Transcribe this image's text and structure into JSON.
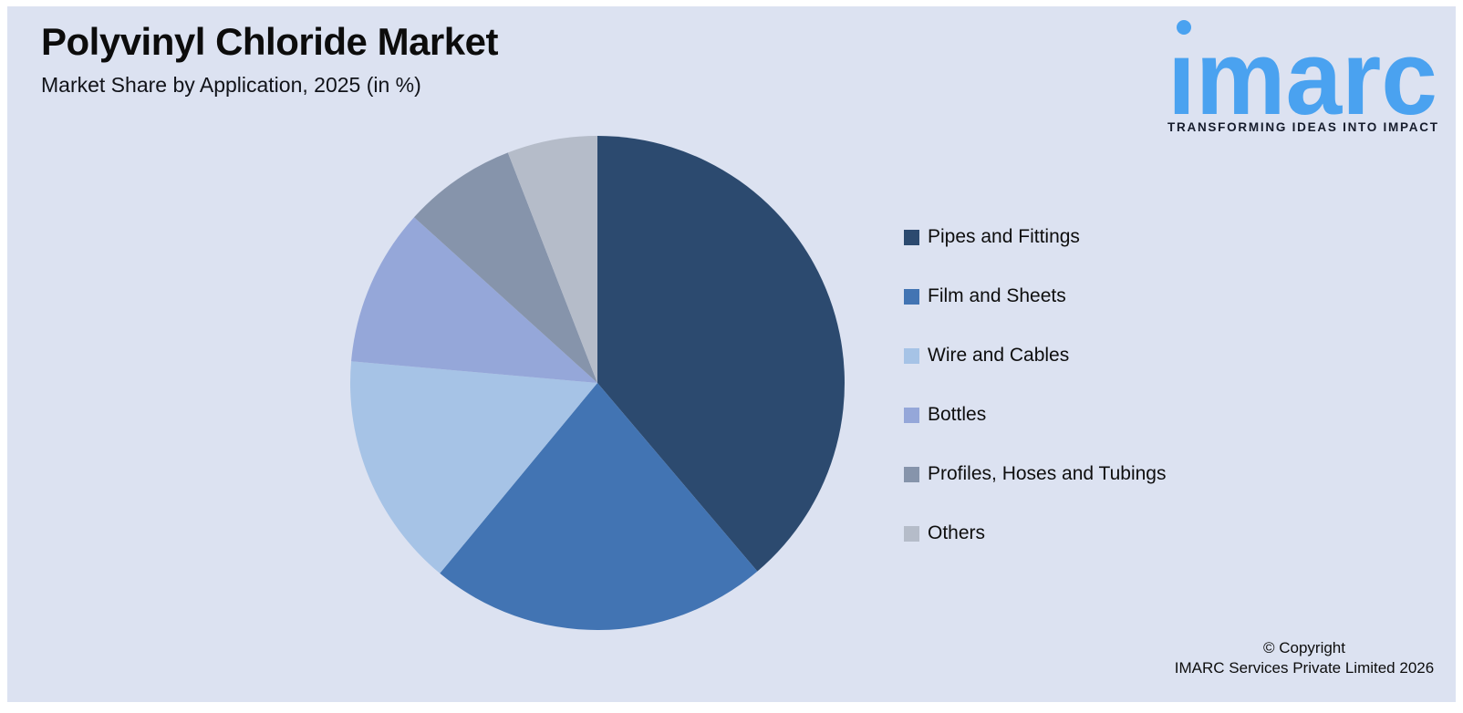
{
  "page": {
    "title": "Polyvinyl Chloride Market",
    "subtitle": "Market Share by Application, 2025 (in %)",
    "panel_background": "#dce2f1",
    "outer_background": "#ffffff"
  },
  "logo": {
    "brand": "imarc",
    "brand_display_dotless": "ımarc",
    "tagline": "TRANSFORMING IDEAS INTO IMPACT",
    "brand_color": "#4aa2f0",
    "tagline_color": "#161c2c"
  },
  "copyright": {
    "line1": "© Copyright",
    "line2": "IMARC Services Private Limited 2026"
  },
  "chart_data": {
    "type": "pie",
    "title": "Polyvinyl Chloride Market",
    "subtitle": "Market Share by Application, 2025 (in %)",
    "unit": "%",
    "start_angle_deg": 0,
    "direction": "clockwise",
    "legend_position": "right",
    "data_labels_shown": false,
    "categories": [
      "Pipes and Fittings",
      "Film and Sheets",
      "Wire and Cables",
      "Bottles",
      "Profiles, Hoses and Tubings",
      "Others"
    ],
    "values": [
      38.8,
      22.2,
      15.4,
      10.3,
      7.4,
      5.9
    ],
    "colors": [
      "#2c4a6f",
      "#4274b3",
      "#a6c3e6",
      "#95a7d9",
      "#8694ab",
      "#b5bcc9"
    ]
  }
}
